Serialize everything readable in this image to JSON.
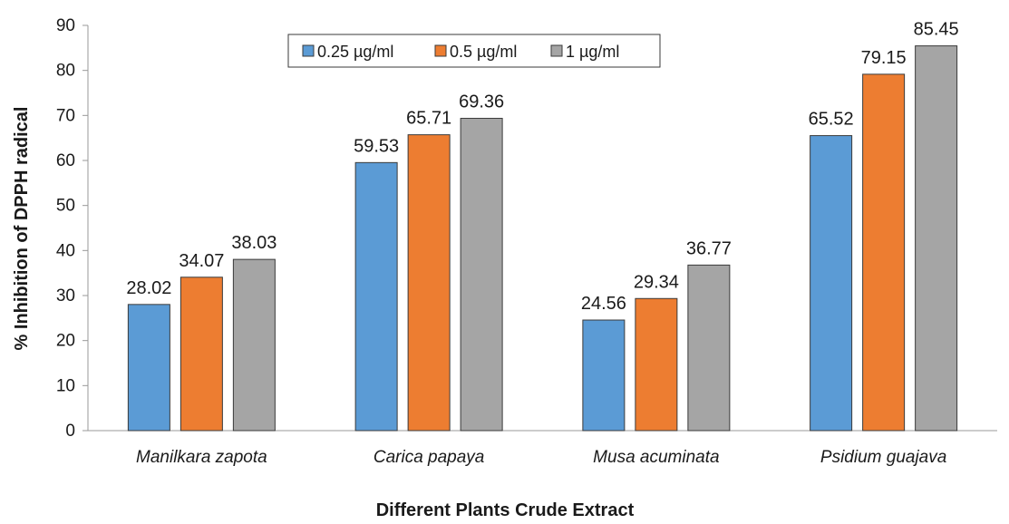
{
  "chart_data": {
    "type": "bar",
    "title": "",
    "xlabel": "Different Plants Crude Extract",
    "ylabel": "% Inhibition of DPPH radical",
    "ylim": [
      0,
      90
    ],
    "yticks": [
      "0",
      "10",
      "20",
      "30",
      "40",
      "50",
      "60",
      "70",
      "80",
      "90"
    ],
    "grid": false,
    "legend_position": "top-center",
    "categories": [
      "Manilkara zapota",
      "Carica papaya",
      "Musa acuminata",
      "Psidium guajava"
    ],
    "series": [
      {
        "name": "0.25 µg/ml",
        "color": "#5b9bd5",
        "values": [
          28.02,
          59.53,
          24.56,
          65.52
        ],
        "labels": [
          "28.02",
          "59.53",
          "24.56",
          "65.52"
        ]
      },
      {
        "name": "0.5 µg/ml",
        "color": "#ed7d31",
        "values": [
          34.07,
          65.71,
          29.34,
          79.15
        ],
        "labels": [
          "34.07",
          "65.71",
          "29.34",
          "79.15"
        ]
      },
      {
        "name": "1 µg/ml",
        "color": "#a5a5a5",
        "values": [
          38.03,
          69.36,
          36.77,
          85.45
        ],
        "labels": [
          "38.03",
          "69.36",
          "36.77",
          "85.45"
        ]
      }
    ]
  }
}
